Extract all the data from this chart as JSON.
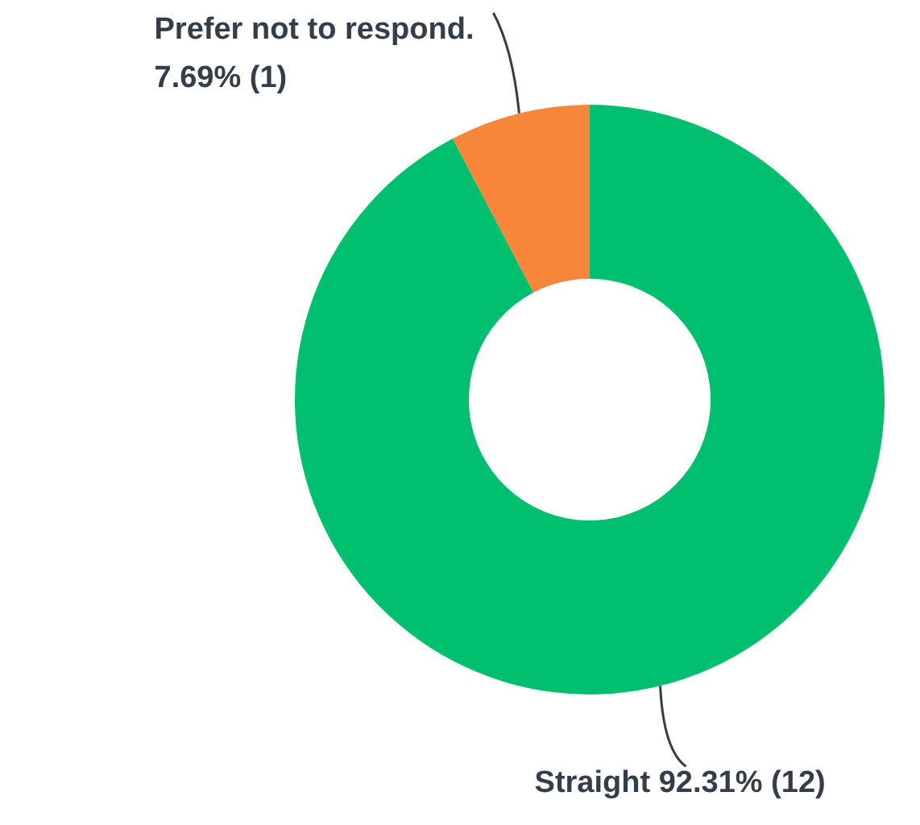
{
  "chart_data": {
    "type": "donut",
    "categories": [
      "Straight",
      "Prefer not to respond."
    ],
    "values": [
      92.31,
      7.69
    ],
    "colors": [
      "#00bf6f",
      "#f7863a"
    ],
    "value_labels": [
      "92.31% (12)",
      "7.69% (1)"
    ],
    "legend": false
  }
}
